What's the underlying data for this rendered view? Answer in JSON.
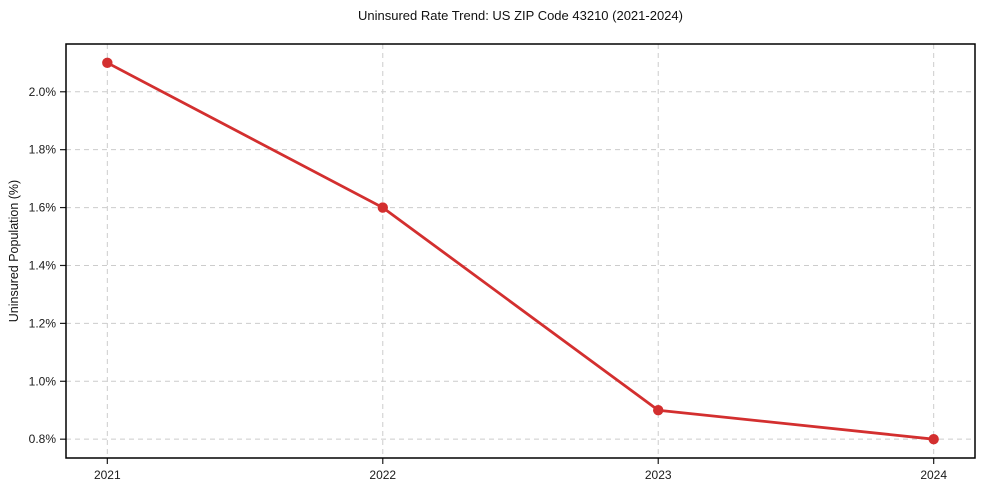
{
  "chart_data": {
    "type": "line",
    "title": "Uninsured Rate Trend: US ZIP Code 43210 (2021-2024)",
    "xlabel": "",
    "ylabel": "Uninsured Population (%)",
    "x": [
      2021,
      2022,
      2023,
      2024
    ],
    "values": [
      2.1,
      1.6,
      0.9,
      0.8
    ],
    "xticks": [
      {
        "v": 2021,
        "label": "2021"
      },
      {
        "v": 2022,
        "label": "2022"
      },
      {
        "v": 2023,
        "label": "2023"
      },
      {
        "v": 2024,
        "label": "2024"
      }
    ],
    "yticks": [
      {
        "v": 0.8,
        "label": "0.8%"
      },
      {
        "v": 1.0,
        "label": "1.0%"
      },
      {
        "v": 1.2,
        "label": "1.2%"
      },
      {
        "v": 1.4,
        "label": "1.4%"
      },
      {
        "v": 1.6,
        "label": "1.6%"
      },
      {
        "v": 1.8,
        "label": "1.8%"
      },
      {
        "v": 2.0,
        "label": "2.0%"
      }
    ],
    "xlim": [
      2020.85,
      2024.15
    ],
    "ylim": [
      0.735,
      2.165
    ],
    "grid": true,
    "grid_style": "dashed",
    "legend": "none",
    "line_color": "#d32f2f",
    "marker_color": "#d32f2f",
    "grid_color": "#cccccc",
    "axis_color": "#000000",
    "tick_color": "#1a1a1a"
  }
}
